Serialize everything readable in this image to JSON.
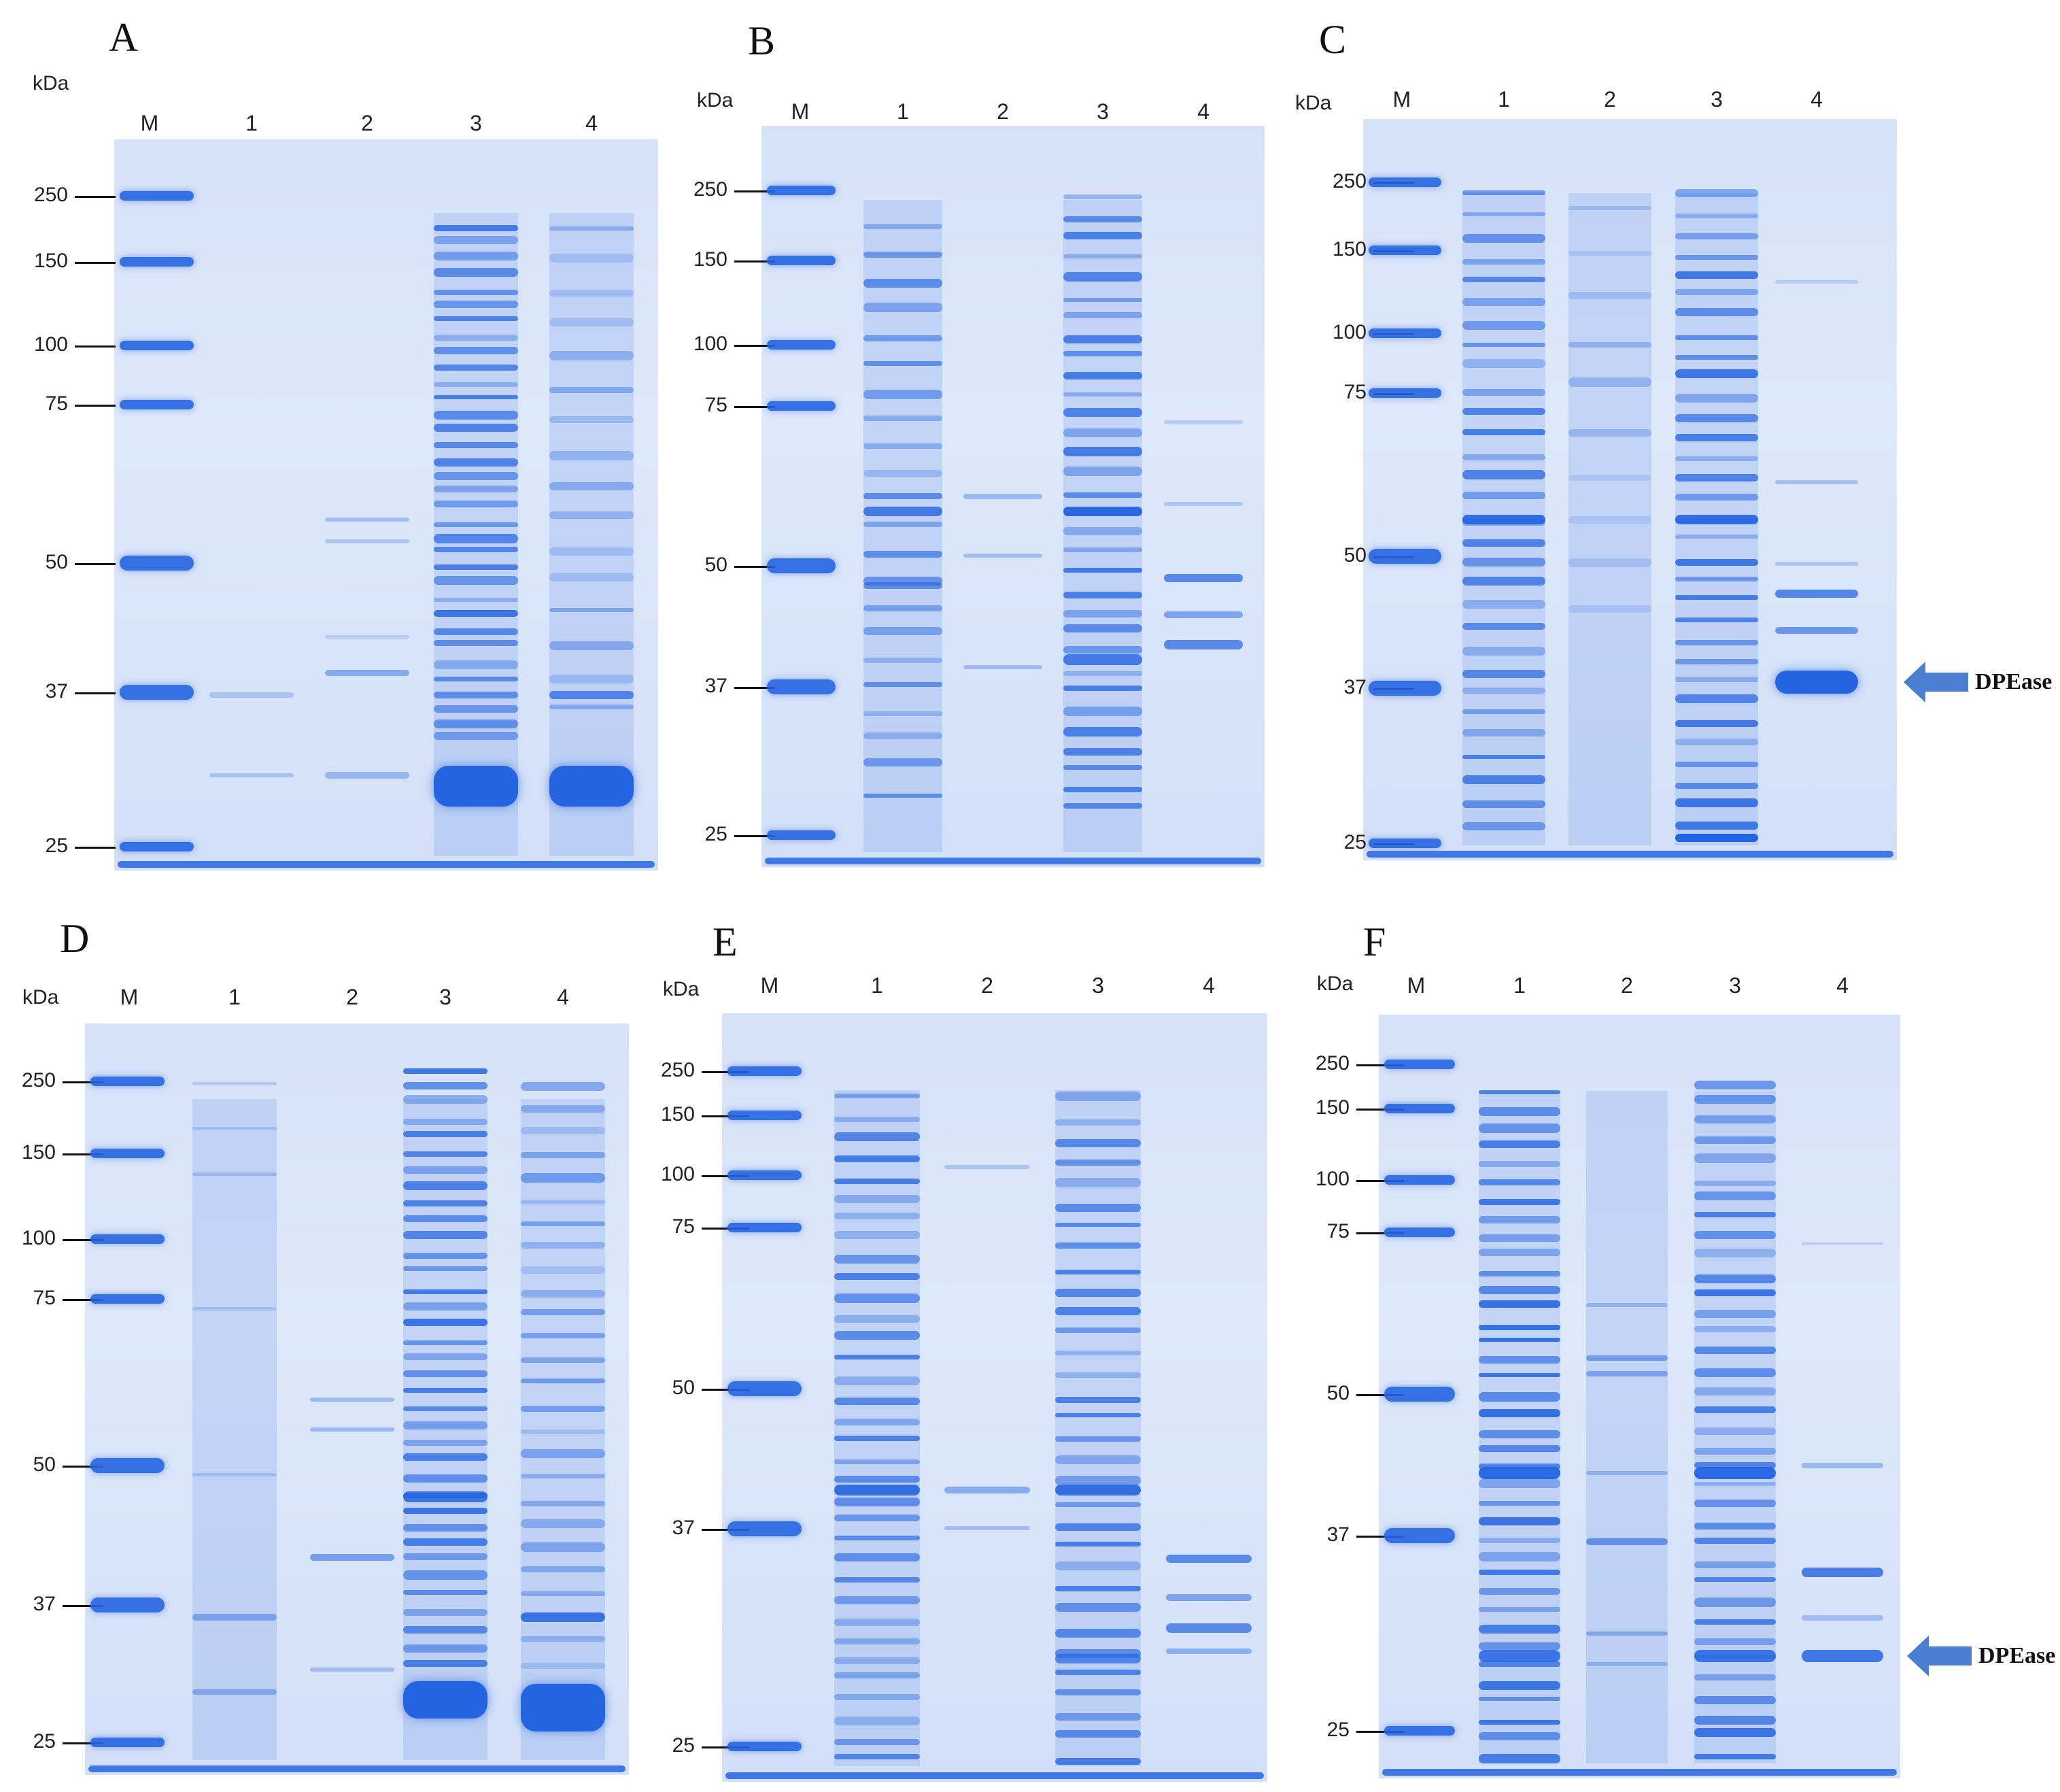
{
  "unit_label": "kDa",
  "lane_labels": [
    "M",
    "1",
    "2",
    "3",
    "4"
  ],
  "marker_labels": [
    "250",
    "150",
    "100",
    "75",
    "50",
    "37",
    "25"
  ],
  "annotation": {
    "label": "DPEase",
    "color": "#4a7ed0"
  },
  "colors": {
    "gel_background": "#dae5fa",
    "band": "#2f6fe0",
    "marker": "#2a70e8"
  },
  "panels": [
    {
      "label": "A",
      "annotated": false
    },
    {
      "label": "B",
      "annotated": false
    },
    {
      "label": "C",
      "annotated": true
    },
    {
      "label": "D",
      "annotated": false
    },
    {
      "label": "E",
      "annotated": false
    },
    {
      "label": "F",
      "annotated": true
    }
  ]
}
